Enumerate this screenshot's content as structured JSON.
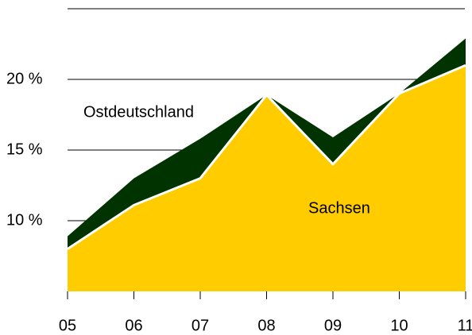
{
  "chart_data": {
    "type": "area",
    "categories": [
      "05",
      "06",
      "07",
      "08",
      "09",
      "10",
      "11"
    ],
    "series": [
      {
        "name": "Ostdeutschland",
        "color": "#003300",
        "values": [
          8.9,
          13.0,
          15.8,
          18.9,
          15.9,
          19.0,
          22.9
        ]
      },
      {
        "name": "Sachsen",
        "color": "#ffcc00",
        "values": [
          8.0,
          11.1,
          13.0,
          18.9,
          14.0,
          19.0,
          21.0
        ]
      }
    ],
    "ylim": [
      5,
      25
    ],
    "yticks": [
      {
        "value": 10,
        "label": "10 %"
      },
      {
        "value": 15,
        "label": "15 %"
      },
      {
        "value": 20,
        "label": "20 %"
      }
    ],
    "grid": true
  }
}
